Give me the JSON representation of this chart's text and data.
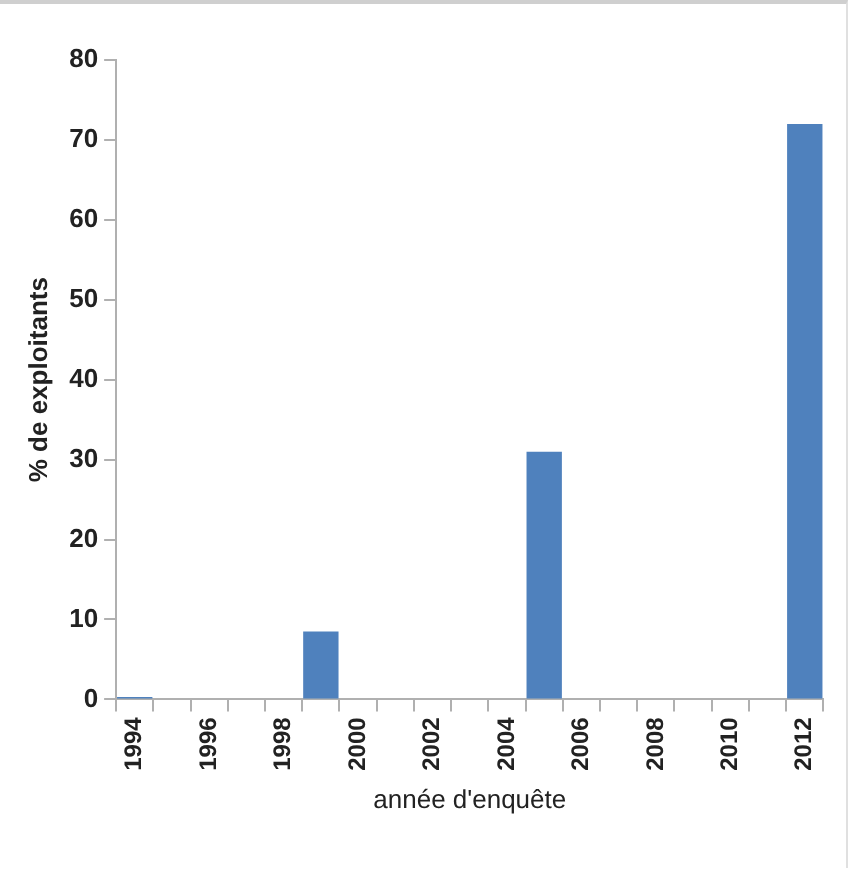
{
  "chart_data": {
    "type": "bar",
    "xlabel": "année d'enquête",
    "ylabel": "% de exploitants",
    "categories": [
      "1994",
      null,
      "1996",
      null,
      "1998",
      null,
      "2000",
      null,
      "2002",
      null,
      "2004",
      null,
      "2006",
      null,
      "2008",
      null,
      "2010",
      null,
      "2012"
    ],
    "values": [
      0.3,
      null,
      null,
      null,
      null,
      8.5,
      null,
      null,
      null,
      null,
      null,
      31,
      null,
      null,
      null,
      null,
      null,
      null,
      72
    ],
    "color": "#4f81bd",
    "ylim": [
      0,
      80
    ],
    "yticks": [
      0,
      10,
      20,
      30,
      40,
      50,
      60,
      70,
      80
    ],
    "grid": false,
    "legend": false
  }
}
